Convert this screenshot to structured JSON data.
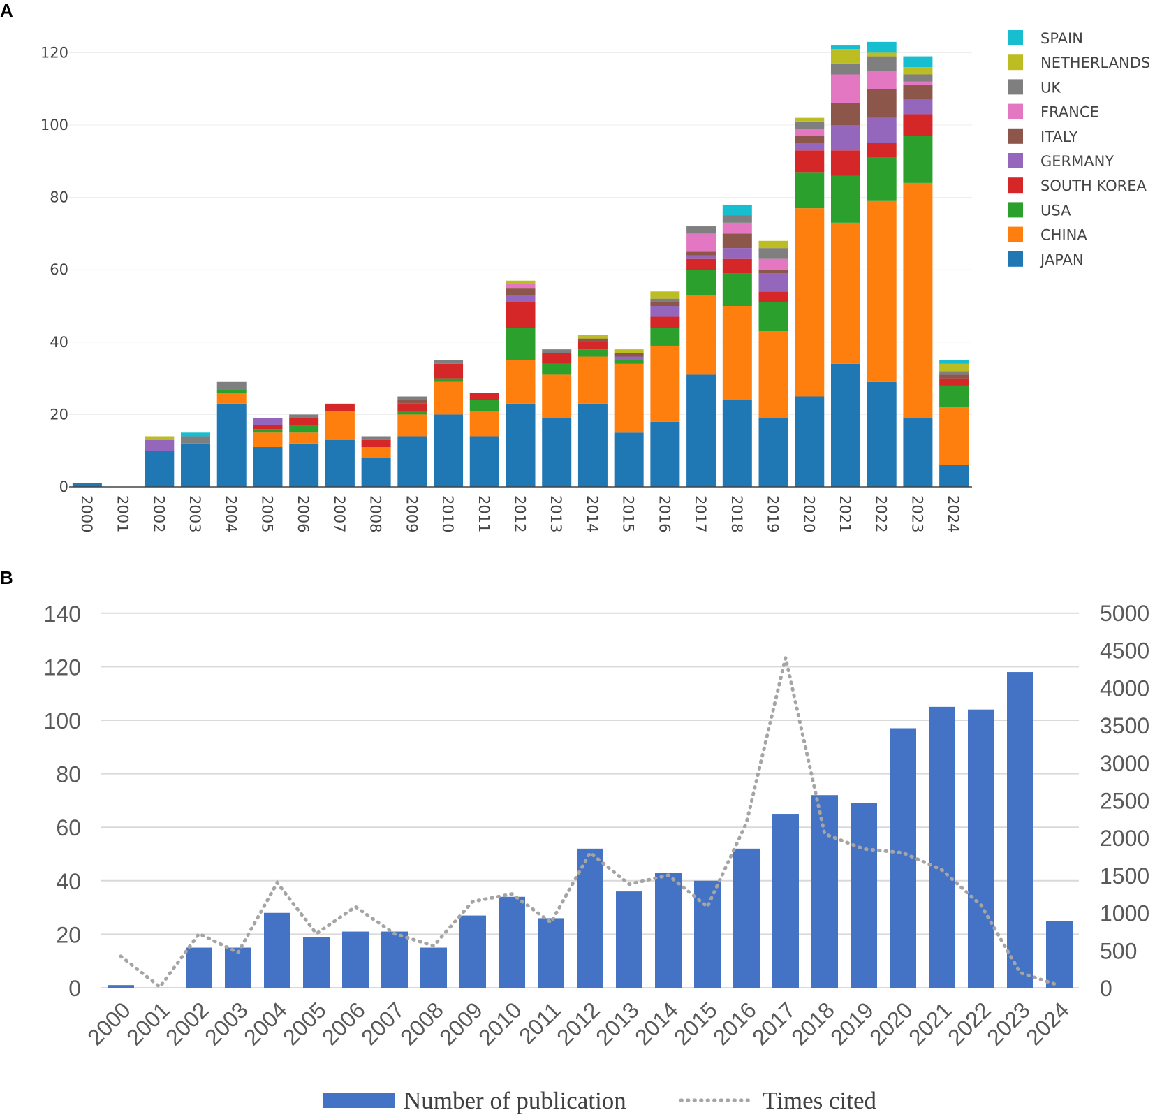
{
  "figure": {
    "panel_a_label": "A",
    "panel_b_label": "B"
  },
  "chart_data": [
    {
      "id": "A",
      "type": "bar",
      "stacked": true,
      "title": "",
      "xlabel": "",
      "ylabel": "",
      "ylim": [
        0,
        125
      ],
      "yticks": [
        0,
        20,
        40,
        60,
        80,
        100,
        120
      ],
      "legend_position": "top-right",
      "categories": [
        "2000",
        "2001",
        "2002",
        "2003",
        "2004",
        "2005",
        "2006",
        "2007",
        "2008",
        "2009",
        "2010",
        "2011",
        "2012",
        "2013",
        "2014",
        "2015",
        "2016",
        "2017",
        "2018",
        "2019",
        "2020",
        "2021",
        "2022",
        "2023",
        "2024"
      ],
      "series": [
        {
          "name": "JAPAN",
          "color": "#1f77b4",
          "values": [
            1,
            0,
            10,
            12,
            23,
            11,
            12,
            13,
            8,
            14,
            20,
            14,
            23,
            19,
            23,
            15,
            18,
            31,
            24,
            19,
            25,
            34,
            29,
            19,
            6
          ]
        },
        {
          "name": "CHINA",
          "color": "#ff7f0e",
          "values": [
            0,
            0,
            0,
            0,
            3,
            4,
            3,
            8,
            3,
            6,
            9,
            7,
            12,
            12,
            13,
            19,
            21,
            22,
            26,
            24,
            52,
            39,
            50,
            65,
            16
          ]
        },
        {
          "name": "USA",
          "color": "#2ca02c",
          "values": [
            0,
            0,
            0,
            0,
            1,
            1,
            2,
            0,
            0,
            1,
            1,
            3,
            9,
            3,
            2,
            1,
            5,
            7,
            9,
            8,
            10,
            13,
            12,
            13,
            6
          ]
        },
        {
          "name": "SOUTH KOREA",
          "color": "#d62728",
          "values": [
            0,
            0,
            0,
            0,
            0,
            1,
            2,
            2,
            2,
            2,
            4,
            2,
            7,
            3,
            2,
            0,
            3,
            3,
            4,
            3,
            6,
            7,
            4,
            6,
            2
          ]
        },
        {
          "name": "GERMANY",
          "color": "#9467bd",
          "values": [
            0,
            0,
            3,
            0,
            0,
            2,
            0,
            0,
            0,
            0,
            0,
            0,
            2,
            0,
            0,
            1,
            3,
            1,
            3,
            5,
            2,
            7,
            7,
            4,
            0
          ]
        },
        {
          "name": "ITALY",
          "color": "#8c564b",
          "values": [
            0,
            0,
            0,
            0,
            0,
            0,
            0,
            0,
            0,
            1,
            0,
            0,
            2,
            0,
            1,
            1,
            1,
            1,
            4,
            1,
            2,
            6,
            8,
            4,
            1
          ]
        },
        {
          "name": "FRANCE",
          "color": "#e377c2",
          "values": [
            0,
            0,
            0,
            0,
            0,
            0,
            0,
            0,
            0,
            0,
            0,
            0,
            1,
            0,
            0,
            0,
            0,
            5,
            3,
            3,
            2,
            8,
            5,
            1,
            0
          ]
        },
        {
          "name": "UK",
          "color": "#7f7f7f",
          "values": [
            0,
            0,
            0,
            2,
            2,
            0,
            1,
            0,
            1,
            1,
            1,
            0,
            0,
            1,
            0,
            0,
            1,
            2,
            2,
            3,
            2,
            3,
            4,
            2,
            1
          ]
        },
        {
          "name": "NETHERLANDS",
          "color": "#bcbd22",
          "values": [
            0,
            0,
            1,
            0,
            0,
            0,
            0,
            0,
            0,
            0,
            0,
            0,
            1,
            0,
            1,
            1,
            2,
            0,
            0,
            2,
            1,
            4,
            1,
            2,
            2
          ]
        },
        {
          "name": "SPAIN",
          "color": "#17becf",
          "values": [
            0,
            0,
            0,
            1,
            0,
            0,
            0,
            0,
            0,
            0,
            0,
            0,
            0,
            0,
            0,
            0,
            0,
            0,
            3,
            0,
            0,
            1,
            3,
            3,
            1
          ]
        }
      ]
    },
    {
      "id": "B",
      "type": "bar",
      "title": "",
      "xlabel": "",
      "ylabel": "",
      "ylim": [
        0,
        140
      ],
      "yticks": [
        0,
        20,
        40,
        60,
        80,
        100,
        120,
        140
      ],
      "y2lim": [
        0,
        5000
      ],
      "y2ticks": [
        0,
        500,
        1000,
        1500,
        2000,
        2500,
        3000,
        3500,
        4000,
        4500,
        5000
      ],
      "legend_position": "bottom",
      "categories": [
        "2000",
        "2001",
        "2002",
        "2003",
        "2004",
        "2005",
        "2006",
        "2007",
        "2008",
        "2009",
        "2010",
        "2011",
        "2012",
        "2013",
        "2014",
        "2015",
        "2016",
        "2017",
        "2018",
        "2019",
        "2020",
        "2021",
        "2022",
        "2023",
        "2024"
      ],
      "series": [
        {
          "name": "Number of publication",
          "type": "bar",
          "axis": "left",
          "color": "#4472c4",
          "values": [
            1,
            0,
            15,
            15,
            28,
            19,
            21,
            21,
            15,
            27,
            34,
            26,
            52,
            36,
            43,
            40,
            52,
            65,
            72,
            69,
            97,
            105,
            104,
            118,
            25
          ]
        },
        {
          "name": "Times cited",
          "type": "line",
          "style": "dotted",
          "axis": "right",
          "color": "#a5a5a5",
          "values": [
            420,
            10,
            720,
            470,
            1400,
            720,
            1080,
            720,
            560,
            1150,
            1250,
            870,
            1800,
            1380,
            1500,
            1080,
            2200,
            4400,
            2050,
            1850,
            1800,
            1570,
            1100,
            200,
            30
          ]
        }
      ]
    }
  ]
}
